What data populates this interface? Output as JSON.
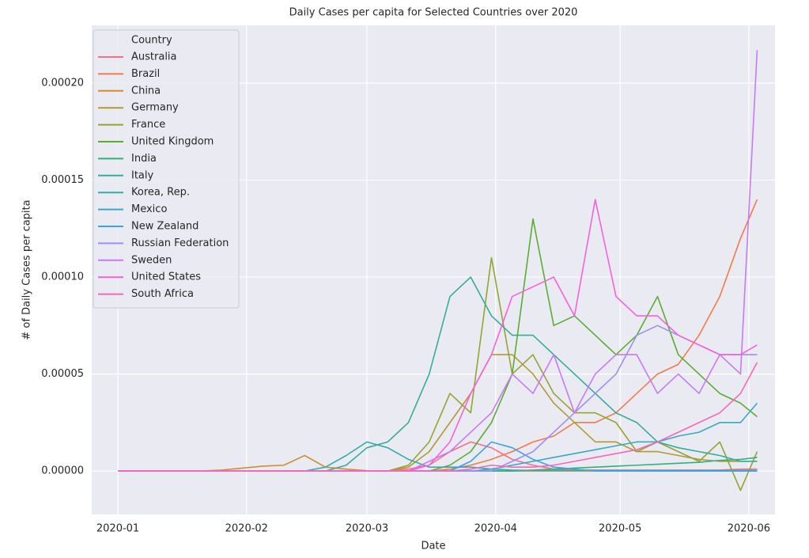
{
  "chart_data": {
    "type": "line",
    "title": "Daily Cases per capita for Selected Countries over 2020",
    "x_label": "Date",
    "y_label": "# of Daily Cases per capita",
    "legend_title": "Country",
    "legend": "upper left",
    "grid": true,
    "x": [
      0,
      5,
      10,
      15,
      20,
      25,
      30,
      35,
      40,
      45,
      50,
      55,
      60,
      65,
      70,
      75,
      80,
      85,
      90,
      95,
      100,
      105,
      110,
      115,
      120,
      125,
      130,
      135,
      140,
      145,
      150,
      154
    ],
    "xlim": [
      -6.3,
      158.3
    ],
    "xticks": [
      {
        "value": 0,
        "label": "2020-01"
      },
      {
        "value": 31,
        "label": "2020-02"
      },
      {
        "value": 60,
        "label": "2020-03"
      },
      {
        "value": 91,
        "label": "2020-04"
      },
      {
        "value": 121,
        "label": "2020-05"
      },
      {
        "value": 152,
        "label": "2020-06"
      }
    ],
    "ylim": [
      -2.24e-05,
      0.0002298
    ],
    "yticks": [
      {
        "value": 0,
        "label": "0.00000"
      },
      {
        "value": 5e-05,
        "label": "0.00005"
      },
      {
        "value": 0.0001,
        "label": "0.00010"
      },
      {
        "value": 0.00015,
        "label": "0.00015"
      },
      {
        "value": 0.0002,
        "label": "0.00020"
      }
    ],
    "series": [
      {
        "name": "Australia",
        "color": "#f67088",
        "values": [
          0,
          0,
          0,
          0,
          0,
          0,
          0,
          0,
          0,
          0,
          0,
          0,
          0,
          0,
          1e-06,
          3e-06,
          1e-05,
          1.5e-05,
          1.2e-05,
          6e-06,
          3e-06,
          1e-06,
          5e-07,
          5e-07,
          5e-07,
          5e-07,
          5e-07,
          5e-07,
          5e-07,
          5e-07,
          1e-06,
          1e-06
        ]
      },
      {
        "name": "Brazil",
        "color": "#f47a4a",
        "values": [
          0,
          0,
          0,
          0,
          0,
          0,
          0,
          0,
          0,
          0,
          0,
          0,
          0,
          0,
          0,
          0,
          1e-06,
          3e-06,
          6e-06,
          1e-05,
          1.5e-05,
          1.8e-05,
          2.5e-05,
          2.5e-05,
          3e-05,
          4e-05,
          5e-05,
          5.5e-05,
          7e-05,
          9e-05,
          0.00012,
          0.00014
        ]
      },
      {
        "name": "China",
        "color": "#ce8f31",
        "values": [
          0,
          0,
          0,
          0,
          0,
          5e-07,
          1.5e-06,
          2.5e-06,
          3e-06,
          8e-06,
          2e-06,
          1e-06,
          2e-07,
          0,
          0,
          0,
          0,
          0,
          0,
          0,
          0,
          0,
          0,
          0,
          0,
          0,
          0,
          0,
          0,
          0,
          0,
          0
        ]
      },
      {
        "name": "Germany",
        "color": "#b19a31",
        "values": [
          0,
          0,
          0,
          0,
          0,
          0,
          0,
          0,
          0,
          0,
          0,
          0,
          0,
          0,
          2e-06,
          1e-05,
          2.5e-05,
          4e-05,
          6e-05,
          6e-05,
          5e-05,
          3.5e-05,
          2.5e-05,
          1.5e-05,
          1.5e-05,
          1e-05,
          1e-05,
          8e-06,
          6e-06,
          5e-06,
          5e-06,
          5e-06
        ]
      },
      {
        "name": "France",
        "color": "#96a331",
        "values": [
          0,
          0,
          0,
          0,
          0,
          0,
          0,
          0,
          0,
          0,
          0,
          0,
          0,
          0,
          3e-06,
          1.5e-05,
          4e-05,
          3e-05,
          0.00011,
          5e-05,
          6e-05,
          4e-05,
          3e-05,
          3e-05,
          2.5e-05,
          1e-05,
          1.5e-05,
          1e-05,
          5e-06,
          1.5e-05,
          -1e-05,
          1e-05
        ]
      },
      {
        "name": "United Kingdom",
        "color": "#5bad32",
        "values": [
          0,
          0,
          0,
          0,
          0,
          0,
          0,
          0,
          0,
          0,
          0,
          0,
          0,
          0,
          0,
          0,
          3e-06,
          1e-05,
          2.5e-05,
          5e-05,
          0.00013,
          7.5e-05,
          8e-05,
          7e-05,
          6e-05,
          7e-05,
          9e-05,
          6e-05,
          5e-05,
          4e-05,
          3.5e-05,
          2.8e-05
        ]
      },
      {
        "name": "India",
        "color": "#33b07a",
        "values": [
          0,
          0,
          0,
          0,
          0,
          0,
          0,
          0,
          0,
          0,
          0,
          0,
          0,
          0,
          0,
          0,
          0,
          0,
          0,
          0,
          5e-07,
          1e-06,
          1.5e-06,
          2e-06,
          2.5e-06,
          3e-06,
          3.5e-06,
          4e-06,
          4.5e-06,
          5.5e-06,
          6e-06,
          7e-06
        ]
      },
      {
        "name": "Italy",
        "color": "#34ad9a",
        "values": [
          0,
          0,
          0,
          0,
          0,
          0,
          0,
          0,
          0,
          0,
          0,
          3e-06,
          1.2e-05,
          1.5e-05,
          2.5e-05,
          5e-05,
          9e-05,
          0.0001,
          8e-05,
          7e-05,
          7e-05,
          6e-05,
          5e-05,
          4e-05,
          3e-05,
          2.5e-05,
          1.5e-05,
          1.2e-05,
          1e-05,
          8e-06,
          5e-06,
          5e-06
        ]
      },
      {
        "name": "Korea, Rep.",
        "color": "#36abae",
        "values": [
          0,
          0,
          0,
          0,
          0,
          0,
          0,
          0,
          0,
          0,
          2e-06,
          8e-06,
          1.5e-05,
          1.2e-05,
          6e-06,
          2e-06,
          2e-06,
          2e-06,
          1e-06,
          5e-07,
          3e-07,
          3e-07,
          3e-07,
          3e-07,
          3e-07,
          3e-07,
          3e-07,
          3e-07,
          3e-07,
          3e-07,
          3e-07,
          3e-07
        ]
      },
      {
        "name": "Mexico",
        "color": "#38a9c5",
        "values": [
          0,
          0,
          0,
          0,
          0,
          0,
          0,
          0,
          0,
          0,
          0,
          0,
          0,
          0,
          0,
          0,
          0,
          0,
          1e-06,
          3e-06,
          5e-06,
          7e-06,
          9e-06,
          1.1e-05,
          1.3e-05,
          1.5e-05,
          1.5e-05,
          1.8e-05,
          2e-05,
          2.5e-05,
          2.5e-05,
          3.5e-05
        ]
      },
      {
        "name": "New Zealand",
        "color": "#3ca2ea",
        "values": [
          0,
          0,
          0,
          0,
          0,
          0,
          0,
          0,
          0,
          0,
          0,
          0,
          0,
          0,
          0,
          0,
          0,
          5e-06,
          1.5e-05,
          1.2e-05,
          6e-06,
          2e-06,
          1e-06,
          0,
          0,
          0,
          0,
          0,
          0,
          0,
          0,
          0
        ]
      },
      {
        "name": "Russian Federation",
        "color": "#9b8ff4",
        "values": [
          0,
          0,
          0,
          0,
          0,
          0,
          0,
          0,
          0,
          0,
          0,
          0,
          0,
          0,
          0,
          0,
          0,
          0,
          0,
          5e-06,
          1e-05,
          2e-05,
          3e-05,
          4e-05,
          5e-05,
          7e-05,
          7.5e-05,
          7e-05,
          6.5e-05,
          6e-05,
          6e-05,
          6e-05
        ]
      },
      {
        "name": "Sweden",
        "color": "#c879f4",
        "values": [
          0,
          0,
          0,
          0,
          0,
          0,
          0,
          0,
          0,
          0,
          0,
          0,
          0,
          0,
          0,
          5e-06,
          1e-05,
          2e-05,
          3e-05,
          5e-05,
          4e-05,
          6e-05,
          3e-05,
          5e-05,
          6e-05,
          6e-05,
          4e-05,
          5e-05,
          4e-05,
          6e-05,
          5e-05,
          0.000217
        ]
      },
      {
        "name": "United States",
        "color": "#f561dd",
        "values": [
          0,
          0,
          0,
          0,
          0,
          0,
          0,
          0,
          0,
          0,
          0,
          0,
          0,
          0,
          0,
          3e-06,
          1.5e-05,
          4e-05,
          6e-05,
          9e-05,
          9.5e-05,
          0.0001,
          8e-05,
          0.00014,
          9e-05,
          8e-05,
          8e-05,
          7e-05,
          6.5e-05,
          6e-05,
          6e-05,
          6.5e-05
        ]
      },
      {
        "name": "South Africa",
        "color": "#f668b7",
        "values": [
          0,
          0,
          0,
          0,
          0,
          0,
          0,
          0,
          0,
          0,
          0,
          0,
          0,
          0,
          0,
          0,
          0,
          1e-06,
          3e-06,
          2e-06,
          2e-06,
          3e-06,
          5e-06,
          7e-06,
          9e-06,
          1.1e-05,
          1.5e-05,
          2e-05,
          2.5e-05,
          3e-05,
          4e-05,
          5.6e-05
        ]
      }
    ]
  }
}
